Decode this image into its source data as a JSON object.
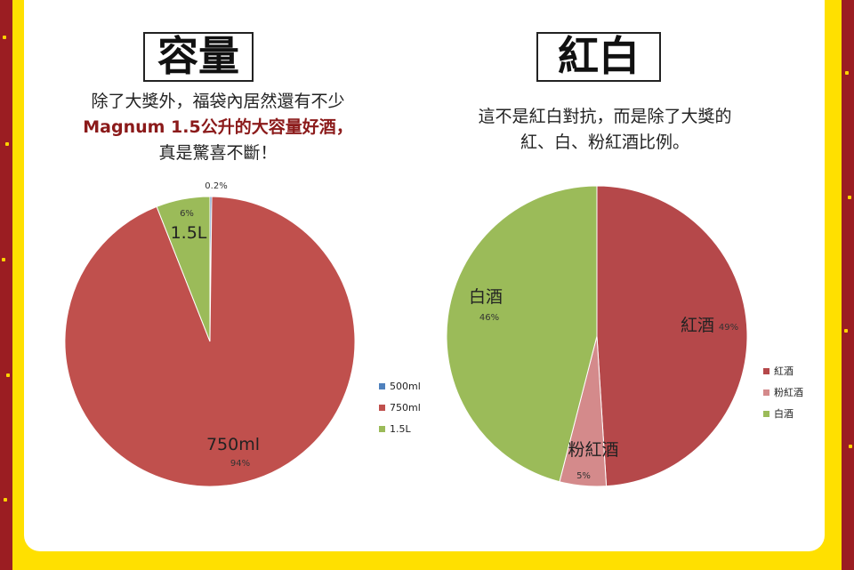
{
  "left": {
    "title": "容量",
    "desc_line1": "除了大獎外，福袋內居然還有不少",
    "desc_line2": "Magnum 1.5公升的大容量好酒，",
    "desc_line3": "真是驚喜不斷！"
  },
  "right": {
    "title": "紅白",
    "desc_line1": "這不是紅白對抗，而是除了大獎的",
    "desc_line2": "紅、白、粉紅酒比例。"
  },
  "chart_data": [
    {
      "type": "pie",
      "categories": [
        "500ml",
        "750ml",
        "1.5L"
      ],
      "values": [
        0.2,
        94,
        6
      ],
      "percent_labels": [
        "0.2%",
        "94%",
        "6%"
      ],
      "slice_labels": [
        "",
        "750ml",
        "1.5L"
      ],
      "colors": [
        "#4f81bd",
        "#c0504d",
        "#9bbb59"
      ],
      "legend": [
        "500ml",
        "750ml",
        "1.5L"
      ],
      "legend_position": "right"
    },
    {
      "type": "pie",
      "categories": [
        "紅酒",
        "粉紅酒",
        "白酒"
      ],
      "values": [
        49,
        5,
        46
      ],
      "percent_labels": [
        "49%",
        "5%",
        "46%"
      ],
      "slice_labels": [
        "紅酒",
        "粉紅酒",
        "白酒"
      ],
      "colors": [
        "#b5484a",
        "#d48a8b",
        "#9bbb59"
      ],
      "legend": [
        "紅酒",
        "粉紅酒",
        "白酒"
      ],
      "legend_position": "right"
    }
  ]
}
